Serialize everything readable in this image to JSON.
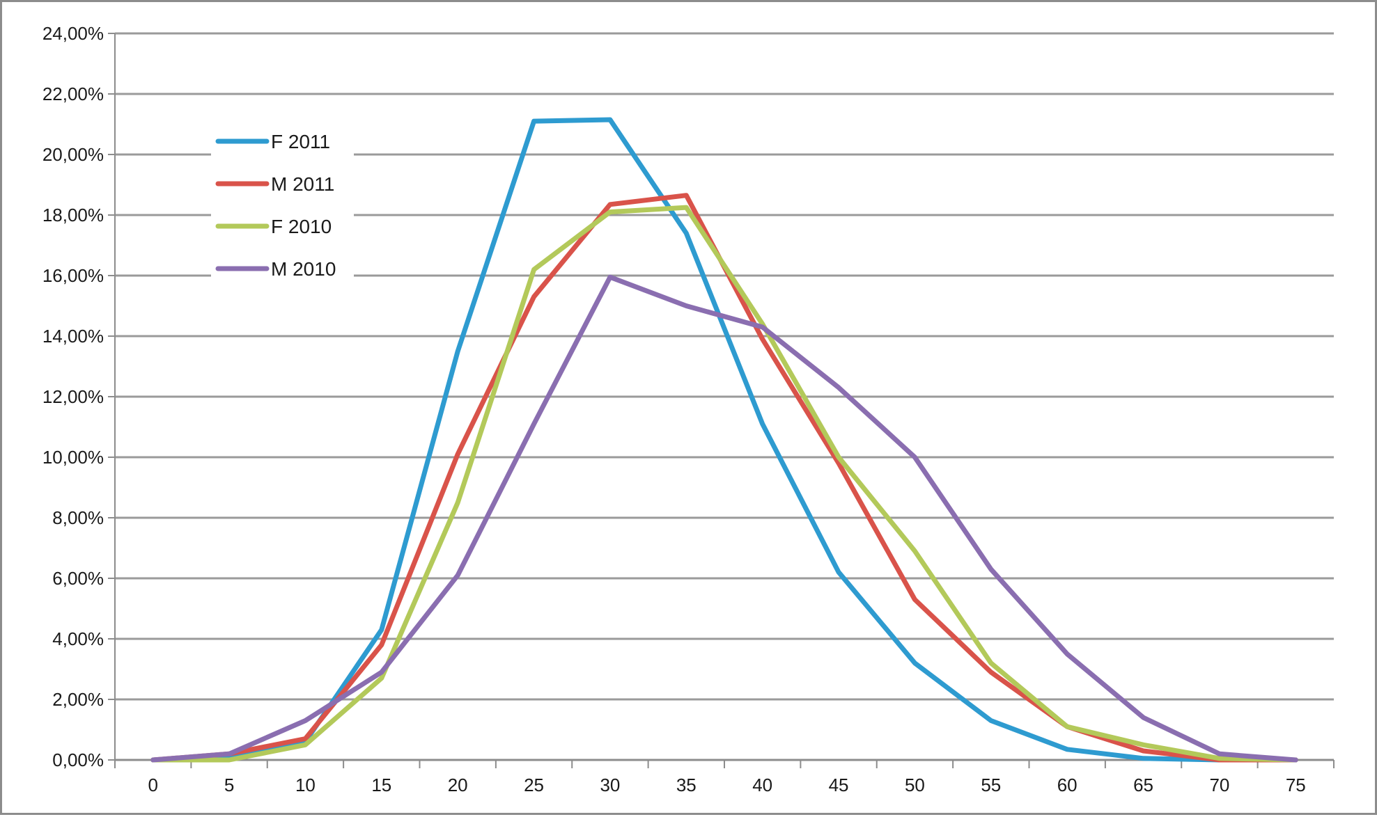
{
  "chart_data": {
    "type": "line",
    "title": "",
    "xlabel": "",
    "ylabel": "",
    "x": [
      0,
      5,
      10,
      15,
      20,
      25,
      30,
      35,
      40,
      45,
      50,
      55,
      60,
      65,
      70,
      75
    ],
    "x_tick_labels": [
      "0",
      "5",
      "10",
      "15",
      "20",
      "25",
      "30",
      "35",
      "40",
      "45",
      "50",
      "55",
      "60",
      "65",
      "70",
      "75"
    ],
    "ylim": [
      0,
      24
    ],
    "y_ticks": [
      0,
      2,
      4,
      6,
      8,
      10,
      12,
      14,
      16,
      18,
      20,
      22,
      24
    ],
    "y_tick_labels": [
      "0,00%",
      "2,00%",
      "4,00%",
      "6,00%",
      "8,00%",
      "10,00%",
      "12,00%",
      "14,00%",
      "16,00%",
      "18,00%",
      "20,00%",
      "22,00%",
      "24,00%"
    ],
    "y_unit": "%",
    "grid": true,
    "legend_position": "top-left",
    "series": [
      {
        "name": "F 2011",
        "color": "#2e9bd0",
        "values": [
          0.0,
          0.1,
          0.6,
          4.3,
          13.5,
          21.1,
          21.15,
          17.4,
          11.1,
          6.2,
          3.2,
          1.3,
          0.35,
          0.05,
          0.0,
          0.0
        ]
      },
      {
        "name": "M 2011",
        "color": "#d9534a",
        "values": [
          0.0,
          0.2,
          0.7,
          3.8,
          10.1,
          15.3,
          18.35,
          18.65,
          13.9,
          9.8,
          5.3,
          2.9,
          1.1,
          0.3,
          0.0,
          0.0
        ]
      },
      {
        "name": "F 2010",
        "color": "#b3c95a",
        "values": [
          0.0,
          0.0,
          0.5,
          2.7,
          8.5,
          16.2,
          18.1,
          18.25,
          14.4,
          10.0,
          6.9,
          3.2,
          1.1,
          0.5,
          0.05,
          0.0
        ]
      },
      {
        "name": "M 2010",
        "color": "#8a6eb0",
        "values": [
          0.0,
          0.2,
          1.3,
          2.9,
          6.1,
          11.1,
          15.95,
          15.0,
          14.3,
          12.3,
          10.0,
          6.3,
          3.5,
          1.4,
          0.2,
          0.0
        ]
      }
    ]
  },
  "style": {
    "grid_color": "#9a9a9a",
    "axis_color": "#8c8c8c",
    "background": "#ffffff"
  }
}
